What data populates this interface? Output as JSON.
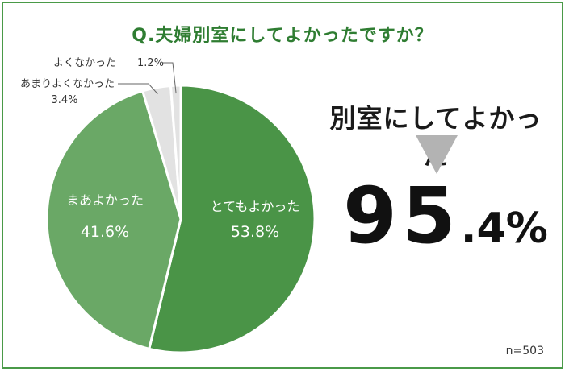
{
  "title": "Q.夫婦別室にしてよかったですか？",
  "headline": "別室にしてよかった",
  "big_value": {
    "integer": "95",
    "decimal": ".4%"
  },
  "sample": "n=503",
  "colors": {
    "border": "#4a9a48",
    "title": "#2f7d32",
    "very_good": "#4a9447",
    "fairly_good": "#6aa866",
    "not_very_good": "#e2e2e2",
    "good_not": "#e2e2e2",
    "arrow": "#b3b3b3"
  },
  "chart_data": {
    "type": "pie",
    "categories": [
      "とてもよかった",
      "まあよかった",
      "あまりよくなかった",
      "よくなかった"
    ],
    "values": [
      53.8,
      41.6,
      3.4,
      1.2
    ],
    "value_labels": [
      "53.8%",
      "41.6%",
      "3.4%",
      "1.2%"
    ],
    "title": "Q.夫婦別室にしてよかったですか？"
  }
}
